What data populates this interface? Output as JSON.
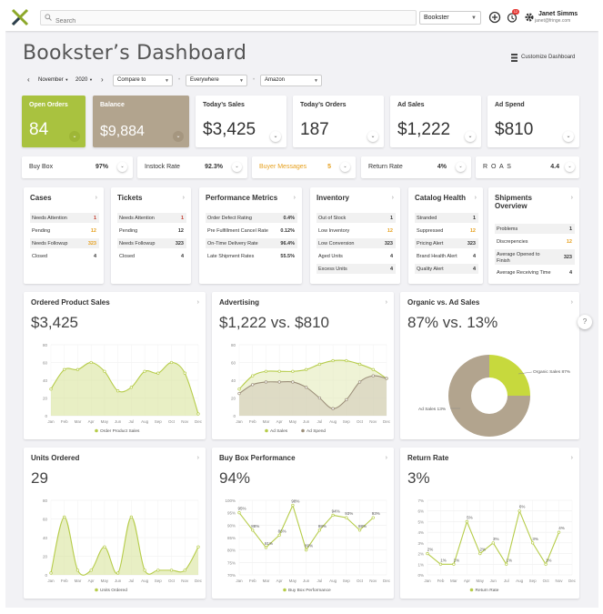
{
  "header": {
    "search_placeholder": "Search",
    "store_selected": "Bookster",
    "notifications_badge": "12",
    "user_name": "Janet Simms",
    "user_email": "janet@fringe.com"
  },
  "page": {
    "title": "Bookster’s Dashboard",
    "customize_label": "Customize Dashboard"
  },
  "filters": {
    "month": "November",
    "year": "2020",
    "compare": "Compare to",
    "region": "Everywhere",
    "channel": "Amazon"
  },
  "kpis": [
    {
      "label": "Open Orders",
      "value": "84"
    },
    {
      "label": "Balance",
      "value": "$9,884"
    },
    {
      "label": "Today’s Sales",
      "value": "$3,425"
    },
    {
      "label": "Today’s Orders",
      "value": "187"
    },
    {
      "label": "Ad Sales",
      "value": "$1,222"
    },
    {
      "label": "Ad Spend",
      "value": "$810"
    }
  ],
  "metrics": [
    {
      "label": "Buy Box",
      "value": "97%"
    },
    {
      "label": "Instock Rate",
      "value": "92.3%"
    },
    {
      "label": "Buyer Messages",
      "value": "5"
    },
    {
      "label": "Return Rate",
      "value": "4%"
    },
    {
      "label": "R O A S",
      "value": "4.4"
    }
  ],
  "lists": [
    {
      "title": "Cases",
      "rows": [
        {
          "label": "Needs Attention",
          "value": "1"
        },
        {
          "label": "Pending",
          "value": "12"
        },
        {
          "label": "Needs Followup",
          "value": "323"
        },
        {
          "label": "Closed",
          "value": "4"
        }
      ]
    },
    {
      "title": "Tickets",
      "rows": [
        {
          "label": "Needs Attention",
          "value": "1"
        },
        {
          "label": "Pending",
          "value": "12"
        },
        {
          "label": "Needs Followup",
          "value": "323"
        },
        {
          "label": "Closed",
          "value": "4"
        }
      ]
    },
    {
      "title": "Performance Metrics",
      "rows": [
        {
          "label": "Order Defect Rating",
          "value": "0.4%"
        },
        {
          "label": "Pre Fulfillment Cancel Rate",
          "value": "0.12%"
        },
        {
          "label": "On-Time Delivery Rate",
          "value": "96.4%"
        },
        {
          "label": "Late Shipment Rates",
          "value": "55.5%"
        }
      ]
    },
    {
      "title": "Inventory",
      "rows": [
        {
          "label": "Out of Stock",
          "value": "1"
        },
        {
          "label": "Low Inventory",
          "value": "12"
        },
        {
          "label": "Low Conversion",
          "value": "323"
        },
        {
          "label": "Aged Units",
          "value": "4"
        },
        {
          "label": "Excess Units",
          "value": "4"
        }
      ]
    },
    {
      "title": "Catalog Health",
      "rows": [
        {
          "label": "Stranded",
          "value": "1"
        },
        {
          "label": "Suppressed",
          "value": "12"
        },
        {
          "label": "Pricing Alert",
          "value": "323"
        },
        {
          "label": "Brand Health Alert",
          "value": "4"
        },
        {
          "label": "Quality Alert",
          "value": "4"
        }
      ]
    },
    {
      "title_line1": "Shipments",
      "title_line2": "Overview",
      "rows": [
        {
          "label": "Problems",
          "value": "1"
        },
        {
          "label": "Discrepencies",
          "value": "12"
        },
        {
          "label": "Average Opened to Finish",
          "value": "323"
        },
        {
          "label": "Average Receiving Time",
          "value": "4"
        }
      ]
    }
  ],
  "charts": [
    {
      "title": "Ordered Product Sales",
      "big_value": "$3,425"
    },
    {
      "title": "Advertising",
      "big_value": "$1,222 vs. $810"
    },
    {
      "title": "Organic vs. Ad Sales",
      "big_value": "87% vs. 13%"
    },
    {
      "title": "Units Ordered",
      "big_value": "29"
    },
    {
      "title": "Buy Box Performance",
      "big_value": "94%"
    },
    {
      "title": "Return Rate",
      "big_value": "3%"
    }
  ],
  "colors": {
    "accent_green": "#a9c23f",
    "tan": "#b2a48e",
    "buyer_messages_orange": "#e6a01e",
    "pending_orange": "#e6a01e",
    "needs_attention_red": "#c0392b"
  },
  "chart_data": [
    {
      "type": "area",
      "title": "Ordered Product Sales",
      "categories": [
        "Jan",
        "Feb",
        "Mar",
        "Apr",
        "May",
        "Jun",
        "Jul",
        "Aug",
        "Sep",
        "Oct",
        "Nov",
        "Dec"
      ],
      "ylim": [
        0,
        80
      ],
      "yticks": [
        "0",
        "20",
        "40",
        "60",
        "80"
      ],
      "series": [
        {
          "name": "Order Product Sales",
          "values": [
            30,
            52,
            52,
            60,
            50,
            28,
            32,
            50,
            48,
            60,
            48,
            2
          ]
        }
      ]
    },
    {
      "type": "area",
      "title": "Advertising",
      "categories": [
        "Jan",
        "Feb",
        "Mar",
        "Apr",
        "May",
        "Jun",
        "Jul",
        "Aug",
        "Sep",
        "Oct",
        "Nov",
        "Dec"
      ],
      "ylim": [
        0,
        80
      ],
      "yticks": [
        "0",
        "20",
        "40",
        "60",
        "80"
      ],
      "series": [
        {
          "name": "Ad Sales",
          "values": [
            30,
            45,
            50,
            50,
            50,
            52,
            58,
            62,
            62,
            58,
            52,
            42
          ]
        },
        {
          "name": "Ad Spend",
          "values": [
            25,
            35,
            38,
            38,
            38,
            32,
            20,
            8,
            18,
            38,
            45,
            42
          ]
        }
      ]
    },
    {
      "type": "pie",
      "title": "Organic vs. Ad Sales",
      "labels": [
        "Organic Sales 87%",
        "Ad Sales 13%"
      ],
      "values": [
        87,
        13
      ]
    },
    {
      "type": "area",
      "title": "Units Ordered",
      "categories": [
        "Jan",
        "Feb",
        "Mar",
        "Apr",
        "May",
        "Jun",
        "Jul",
        "Aug",
        "Sep",
        "Oct",
        "Nov",
        "Dec"
      ],
      "ylim": [
        0,
        80
      ],
      "yticks": [
        "0",
        "20",
        "40",
        "60",
        "80"
      ],
      "series": [
        {
          "name": "Units Ordered",
          "values": [
            2,
            62,
            5,
            5,
            30,
            2,
            62,
            5,
            5,
            5,
            5,
            30
          ]
        }
      ]
    },
    {
      "type": "line",
      "title": "Buy Box Performance",
      "categories": [
        "Jan",
        "Feb",
        "Mar",
        "Apr",
        "May",
        "Jun",
        "Jul",
        "Aug",
        "Sep",
        "Oct",
        "Nov",
        "Dec"
      ],
      "ylim": [
        70,
        100
      ],
      "yticks": [
        "70%",
        "75%",
        "80%",
        "85%",
        "90%",
        "95%",
        "100%"
      ],
      "series": [
        {
          "name": "Buy Box Performance",
          "values": [
            95,
            88,
            81,
            86,
            98,
            80,
            88,
            94,
            93,
            88,
            93,
            null
          ],
          "labels": [
            "95%",
            "88%",
            "81%",
            "86%",
            "98%",
            "80%",
            "88%",
            "94%",
            "93%",
            "88%",
            "93%",
            ""
          ]
        }
      ]
    },
    {
      "type": "line",
      "title": "Return Rate",
      "categories": [
        "Jan",
        "Feb",
        "Mar",
        "Apr",
        "May",
        "Jun",
        "Jul",
        "Aug",
        "Sep",
        "Oct",
        "Nov",
        "Dec"
      ],
      "ylim": [
        0,
        7
      ],
      "yticks": [
        "0%",
        "1%",
        "2%",
        "3%",
        "4%",
        "5%",
        "6%",
        "7%"
      ],
      "series": [
        {
          "name": "Return Rate",
          "values": [
            2,
            1,
            1,
            5,
            2,
            3,
            1,
            6,
            3,
            1,
            4,
            null
          ],
          "labels": [
            "2%",
            "1%",
            "1%",
            "5%",
            "2%",
            "3%",
            "1%",
            "6%",
            "3%",
            "1%",
            "4%",
            ""
          ]
        }
      ]
    }
  ]
}
